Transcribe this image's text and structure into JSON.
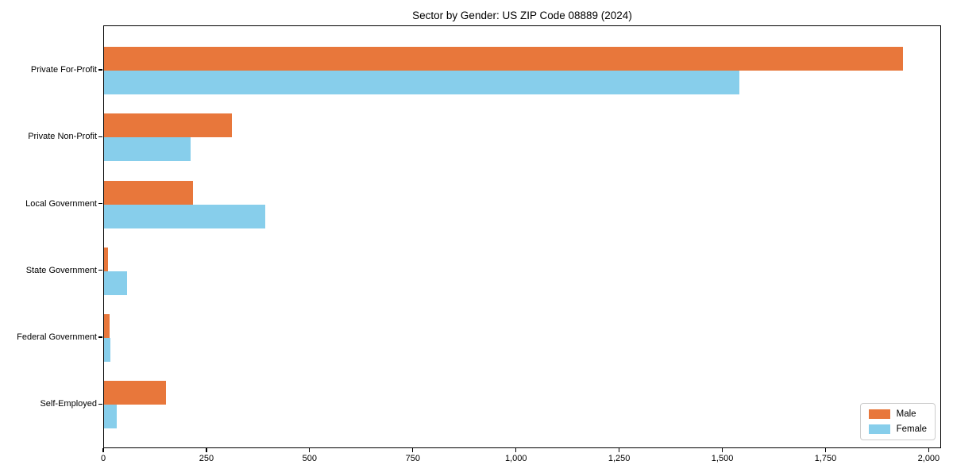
{
  "chart_data": {
    "type": "bar",
    "orientation": "horizontal",
    "title": "Sector by Gender: US ZIP Code 08889 (2024)",
    "categories": [
      "Private For-Profit",
      "Private Non-Profit",
      "Local Government",
      "State Government",
      "Federal Government",
      "Self-Employed"
    ],
    "series": [
      {
        "name": "Male",
        "color": "#e8773b",
        "values": [
          1935,
          310,
          215,
          10,
          14,
          150
        ]
      },
      {
        "name": "Female",
        "color": "#87ceeb",
        "values": [
          1540,
          210,
          390,
          55,
          15,
          30
        ]
      }
    ],
    "xlim": [
      0,
      2030
    ],
    "xticks": [
      0,
      250,
      500,
      750,
      1000,
      1250,
      1500,
      1750,
      2000
    ],
    "xtick_labels": [
      "0",
      "250",
      "500",
      "750",
      "1,000",
      "1,250",
      "1,500",
      "1,750",
      "2,000"
    ],
    "xlabel": "",
    "ylabel": "",
    "grid": false,
    "legend_position": "lower right",
    "colors": {
      "male": "#e8773b",
      "female": "#87ceeb",
      "spine": "#000000",
      "legend_border": "#cccccc"
    }
  }
}
